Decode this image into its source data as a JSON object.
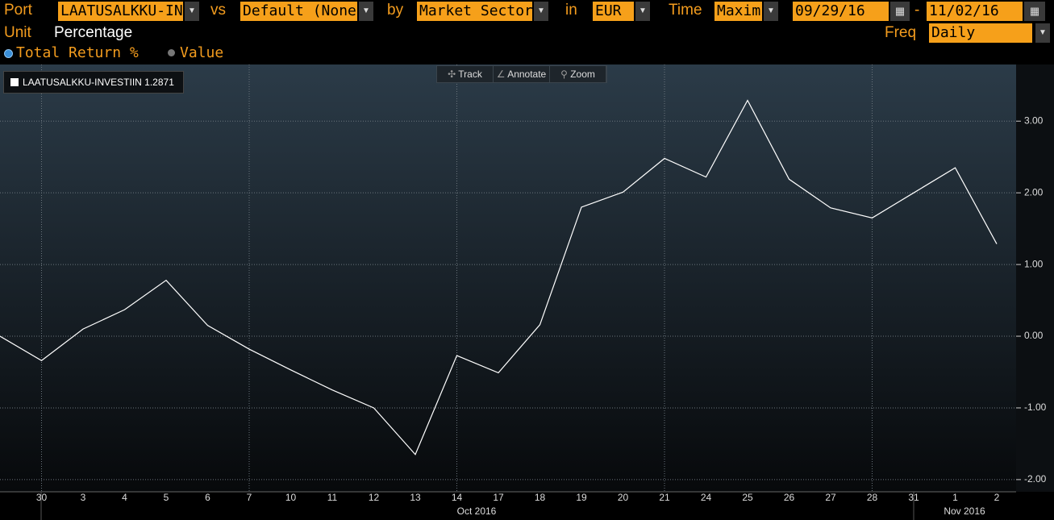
{
  "toolbar": {
    "row1": [
      {
        "label": "Port",
        "field": "LAATUSALKKU-IN"
      },
      {
        "label": "vs",
        "field": "Default (None)"
      },
      {
        "label": "by",
        "field": "Market Sector"
      },
      {
        "label": "in",
        "field": "EUR"
      },
      {
        "label": "Time",
        "field": "Maxim"
      }
    ],
    "start_date": "09/29/16",
    "date_separator": "-",
    "end_date": "11/02/16",
    "unit_label": "Unit",
    "unit_value": "Percentage",
    "freq_label": "Freq",
    "freq_value": "Daily",
    "options": [
      "Total Return %",
      "Value"
    ],
    "chart_tools": [
      "Track",
      "Annotate",
      "Zoom"
    ]
  },
  "chart_data": {
    "type": "line",
    "categories": [
      null,
      "30",
      "3",
      "4",
      "5",
      "6",
      "7",
      "10",
      "11",
      "12",
      "13",
      "14",
      "17",
      "18",
      "19",
      "20",
      "21",
      "24",
      "25",
      "26",
      "27",
      "28",
      "31",
      "1",
      "2"
    ],
    "x_groups": [
      "Oct 2016",
      "Nov 2016"
    ],
    "series": [
      {
        "name": "LAATUSALKKU-INVESTIIN",
        "color": "#ffffff",
        "values": [
          0,
          -0.34,
          0.1,
          0.37,
          0.78,
          0.15,
          -0.18,
          -0.47,
          -0.75,
          -1.0,
          -1.65,
          -0.27,
          -0.51,
          0.16,
          1.8,
          2.01,
          2.48,
          2.22,
          3.29,
          2.19,
          1.79,
          1.65,
          2.0,
          2.35,
          1.2871
        ]
      }
    ],
    "ylim": [
      -2.17,
      3.79
    ],
    "yticks": [
      {
        "value": -2,
        "label": "-2.00"
      },
      {
        "value": -1,
        "label": "-1.00"
      },
      {
        "value": 0,
        "label": "0.00"
      },
      {
        "value": 1,
        "label": "1.00"
      },
      {
        "value": 2,
        "label": "2.00"
      },
      {
        "value": 3,
        "label": "3.00"
      }
    ],
    "grid": true
  }
}
